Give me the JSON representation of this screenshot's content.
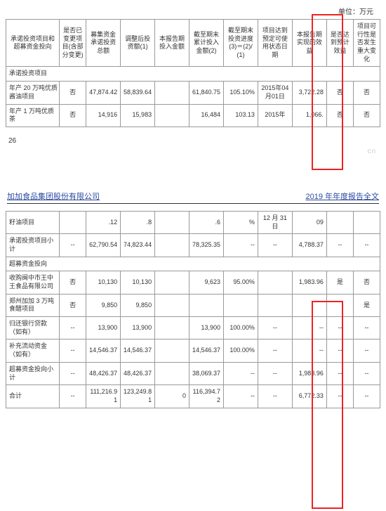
{
  "unit_label": "单位：万元",
  "headers": {
    "c0": "承诺投资项目和超募资金投向",
    "c1": "是否已变更项目(含部分变更)",
    "c2": "募集资金承诺投资总额",
    "c3": "调整后投资额(1)",
    "c4": "本报告期投入金额",
    "c5": "截至期末累计投入金额(2)",
    "c6": "截至期末投资进度(3)＝(2)/(1)",
    "c7": "项目达到预定可使用状态日期",
    "c8": "本报告期实现的效益",
    "c9": "是否达到预计效益",
    "c10": "项目可行性是否发生重大变化"
  },
  "section1_label": "承诺投资项目",
  "rows_top": [
    {
      "name": "年产 20 万吨优质酱油项目",
      "c1": "否",
      "c2": "47,874.42",
      "c3": "58,839.64",
      "c4": "",
      "c5": "61,840.75",
      "c6": "105.10%",
      "c7": "2015年04月01日",
      "c8": "3,722.28",
      "c9": "否",
      "c10": "否"
    },
    {
      "name": "年产 1 万吨优质茶",
      "c1": "否",
      "c2": "14,916",
      "c3": "15,983",
      "c4": "",
      "c5": "16,484",
      "c6": "103.13",
      "c7": "2015年",
      "c8": "1,066.",
      "c9": "否",
      "c10": "否"
    }
  ],
  "page_number": "26",
  "watermark": "cn",
  "company_header_left": "加加食品集团股份有限公司",
  "company_header_right": "2019 年年度报告全文",
  "rows_bottom": [
    {
      "name": "籽油项目",
      "c1": "",
      "c2": ".12",
      "c3": ".8",
      "c4": "",
      "c5": ".6",
      "c6": "%",
      "c7": "12 月 31 日",
      "c8": "09",
      "c9": "",
      "c10": ""
    },
    {
      "name": "承诺投资项目小计",
      "c1": "--",
      "c2": "62,790.54",
      "c3": "74,823.44",
      "c4": "",
      "c5": "78,325.35",
      "c6": "--",
      "c7": "--",
      "c8": "4,788.37",
      "c9": "--",
      "c10": "--"
    }
  ],
  "section2_label": "超募资金投向",
  "rows_bottom2": [
    {
      "name": "收购闽中市王中王食品有限公司",
      "c1": "否",
      "c2": "10,130",
      "c3": "10,130",
      "c4": "",
      "c5": "9,623",
      "c6": "95.00%",
      "c7": "",
      "c8": "1,983.96",
      "c9": "是",
      "c10": "否"
    },
    {
      "name": "郑州加加 3 万吨食醋项目",
      "c1": "否",
      "c2": "9,850",
      "c3": "9,850",
      "c4": "",
      "c5": "",
      "c6": "",
      "c7": "",
      "c8": "",
      "c9": "",
      "c10": "是"
    },
    {
      "name": "归还银行贷款（如有）",
      "c1": "--",
      "c2": "13,900",
      "c3": "13,900",
      "c4": "",
      "c5": "13,900",
      "c6": "100.00%",
      "c7": "--",
      "c8": "--",
      "c9": "--",
      "c10": "--"
    },
    {
      "name": "补充流动资金（如有）",
      "c1": "--",
      "c2": "14,546.37",
      "c3": "14,546.37",
      "c4": "",
      "c5": "14,546.37",
      "c6": "100.00%",
      "c7": "--",
      "c8": "--",
      "c9": "--",
      "c10": "--"
    },
    {
      "name": "超募资金投向小计",
      "c1": "--",
      "c2": "48,426.37",
      "c3": "48,426.37",
      "c4": "",
      "c5": "38,069.37",
      "c6": "--",
      "c7": "--",
      "c8": "1,983.96",
      "c9": "--",
      "c10": "--"
    },
    {
      "name": "合计",
      "c1": "--",
      "c2": "111,216.91",
      "c3": "123,249.81",
      "c4": "0",
      "c5": "116,394.72",
      "c6": "--",
      "c7": "--",
      "c8": "6,772.33",
      "c9": "--",
      "c10": "--"
    }
  ]
}
